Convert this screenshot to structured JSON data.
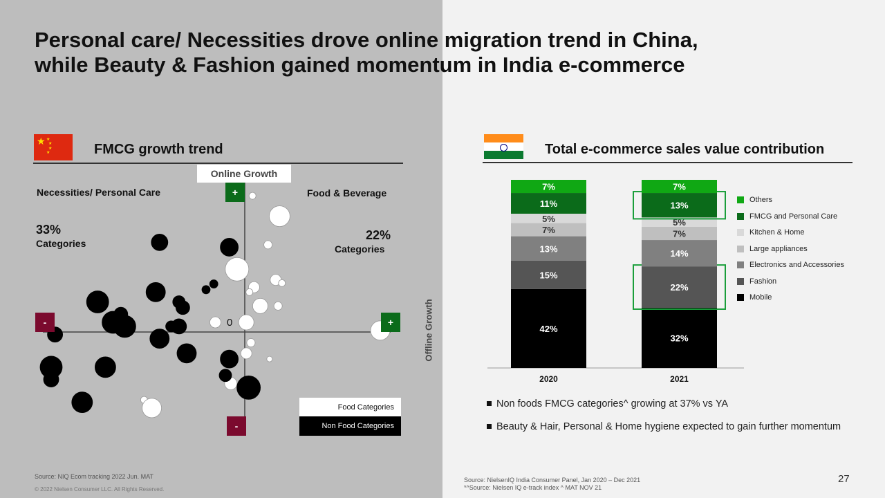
{
  "title_lines": [
    "Personal care/ Necessities drove online migration trend in China,",
    "while Beauty & Fashion gained momentum in India e-commerce"
  ],
  "left_section": {
    "title": "FMCG  growth trend",
    "online_growth_label": "Online Growth",
    "offline_growth_label": "Offline Growth",
    "origin_label": "0",
    "plus_label": "+",
    "minus_label": "-",
    "quadrant_left_label": "Necessities/ Personal Care",
    "quadrant_right_label": "Food & Beverage",
    "left_pct": "33%",
    "left_pct_sub": "Categories",
    "right_pct": "22%",
    "right_pct_sub": "Categories",
    "legend_food": "Food Categories",
    "legend_nonfood": "Non Food Categories",
    "source": "Source: NIQ Ecom tracking 2022 Jun. MAT",
    "copyright": "© 2022 Nielsen Consumer LLC. All Rights Reserved.",
    "colors": {
      "china_red": "#de2910",
      "plus_green": "#0b6b1a",
      "minus_maroon": "#7b0a2e"
    }
  },
  "right_section": {
    "title": "Total e-commerce sales value contribution",
    "bullets": [
      "Non foods FMCG categories^ growing at 37% vs YA",
      "Beauty & Hair, Personal & Home hygiene expected to gain further momentum"
    ],
    "source_line1": "Source: NielsenIQ India Consumer Panel,  Jan 2020 – Dec 2021",
    "source_line2": "*^Source: Nielsen IQ e-track index ^ MAT NOV 21",
    "page_number": "27",
    "highlight_color": "#1a9e3a"
  },
  "chart_data": [
    {
      "type": "scatter",
      "title": "FMCG  growth trend",
      "xlabel": "Offline Growth",
      "ylabel": "Online Growth",
      "origin": [
        0,
        0
      ],
      "series": [
        {
          "name": "Food Categories",
          "color": "#ffffff",
          "points": [
            {
              "x": 0.1,
              "y": 1.55,
              "r": 5
            },
            {
              "x": 0.45,
              "y": 1.3,
              "r": 15
            },
            {
              "x": 0.3,
              "y": 0.95,
              "r": 6
            },
            {
              "x": -0.1,
              "y": 0.65,
              "r": 17
            },
            {
              "x": 0.4,
              "y": 0.52,
              "r": 8
            },
            {
              "x": 0.48,
              "y": 0.48,
              "r": 5
            },
            {
              "x": 0.12,
              "y": 0.43,
              "r": 8
            },
            {
              "x": 0.2,
              "y": 0.2,
              "r": 11
            },
            {
              "x": 0.43,
              "y": 0.2,
              "r": 6
            },
            {
              "x": 0.06,
              "y": 0.37,
              "r": 5
            },
            {
              "x": -0.38,
              "y": 0.0,
              "r": 8
            },
            {
              "x": 0.02,
              "y": 0.0,
              "r": 11
            },
            {
              "x": 1.75,
              "y": -0.1,
              "r": 14
            },
            {
              "x": 0.08,
              "y": -0.25,
              "r": 6
            },
            {
              "x": 0.02,
              "y": -0.38,
              "r": 8
            },
            {
              "x": 0.32,
              "y": -0.45,
              "r": 4
            },
            {
              "x": -0.18,
              "y": -0.75,
              "r": 9
            },
            {
              "x": -1.3,
              "y": -0.95,
              "r": 5
            },
            {
              "x": -1.2,
              "y": -1.05,
              "r": 14
            }
          ]
        },
        {
          "name": "Non Food Categories",
          "color": "#000000",
          "points": [
            {
              "x": -1.1,
              "y": 0.98,
              "r": 12
            },
            {
              "x": -0.2,
              "y": 0.92,
              "r": 13
            },
            {
              "x": -0.4,
              "y": 0.47,
              "r": 6
            },
            {
              "x": -0.5,
              "y": 0.4,
              "r": 6
            },
            {
              "x": -1.15,
              "y": 0.37,
              "r": 14
            },
            {
              "x": -1.9,
              "y": 0.25,
              "r": 16
            },
            {
              "x": -0.85,
              "y": 0.25,
              "r": 9
            },
            {
              "x": -0.8,
              "y": 0.18,
              "r": 10
            },
            {
              "x": -1.6,
              "y": 0.1,
              "r": 10
            },
            {
              "x": -1.7,
              "y": 0.0,
              "r": 16
            },
            {
              "x": -1.55,
              "y": -0.05,
              "r": 16
            },
            {
              "x": -0.85,
              "y": -0.05,
              "r": 11
            },
            {
              "x": -0.95,
              "y": -0.05,
              "r": 8
            },
            {
              "x": -2.45,
              "y": -0.15,
              "r": 11
            },
            {
              "x": -1.1,
              "y": -0.2,
              "r": 14
            },
            {
              "x": -0.75,
              "y": -0.38,
              "r": 14
            },
            {
              "x": -0.2,
              "y": -0.45,
              "r": 13
            },
            {
              "x": -2.5,
              "y": -0.55,
              "r": 16
            },
            {
              "x": -1.8,
              "y": -0.55,
              "r": 15
            },
            {
              "x": -0.25,
              "y": -0.65,
              "r": 9
            },
            {
              "x": -2.5,
              "y": -0.7,
              "r": 11
            },
            {
              "x": 0.05,
              "y": -0.8,
              "r": 17
            },
            {
              "x": -2.1,
              "y": -0.98,
              "r": 15
            }
          ]
        }
      ]
    },
    {
      "type": "bar",
      "stacked": true,
      "title": "Total e-commerce sales value contribution",
      "categories": [
        "2020",
        "2021"
      ],
      "series": [
        {
          "name": "Mobile",
          "color": "#000000",
          "values": [
            42,
            32
          ],
          "labels": [
            "42%",
            "32%"
          ]
        },
        {
          "name": "Fashion",
          "color": "#555555",
          "values": [
            15,
            22
          ],
          "labels": [
            "15%",
            "22%"
          ]
        },
        {
          "name": "Electronics and Accessories",
          "color": "#808080",
          "values": [
            13,
            14
          ],
          "labels": [
            "13%",
            "14%"
          ]
        },
        {
          "name": "Large appliances",
          "color": "#bfbfbf",
          "values": [
            7,
            7
          ],
          "labels": [
            "7%",
            "7%"
          ]
        },
        {
          "name": "Kitchen & Home",
          "color": "#d9d9d9",
          "values": [
            5,
            5
          ],
          "labels": [
            "5%",
            "5%"
          ]
        },
        {
          "name": "FMCG and Personal Care",
          "color": "#0b6b1a",
          "values": [
            11,
            13
          ],
          "labels": [
            "11%",
            "13%"
          ]
        },
        {
          "name": "Others",
          "color": "#10a814",
          "values": [
            7,
            7
          ],
          "labels": [
            "7%",
            "7%"
          ]
        }
      ],
      "legend_order": [
        "Others",
        "FMCG and Personal Care",
        "Kitchen & Home",
        "Large appliances",
        "Electronics and Accessories",
        "Fashion",
        "Mobile"
      ],
      "legend_position": "right",
      "highlighted_segments": [
        {
          "category": "2021",
          "series": "FMCG and Personal Care"
        },
        {
          "category": "2021",
          "series": "Fashion"
        }
      ]
    }
  ]
}
